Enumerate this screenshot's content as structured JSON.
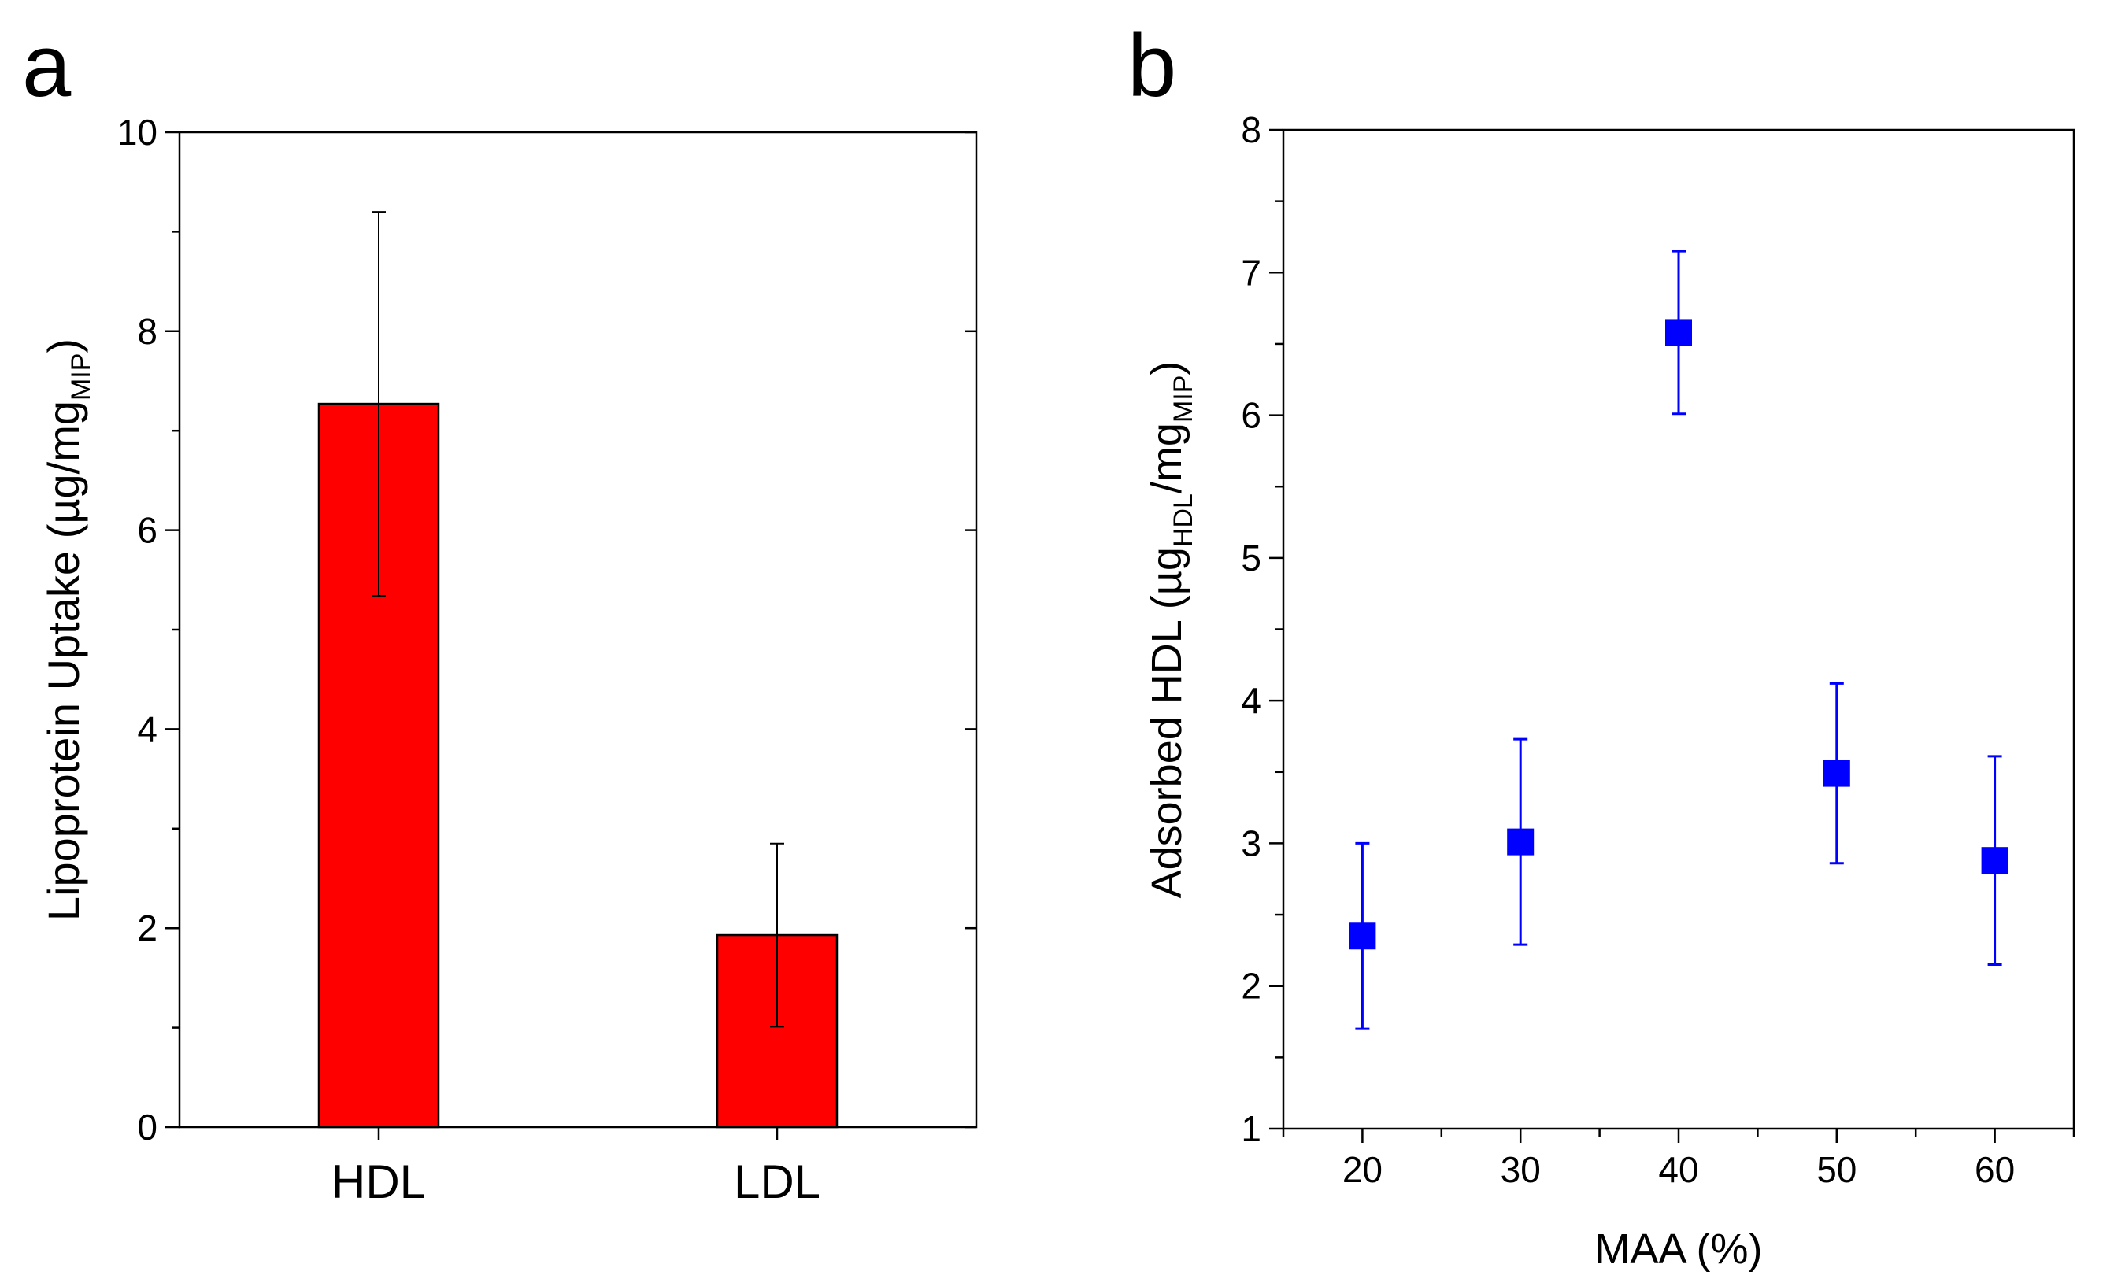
{
  "panels": [
    {
      "letter": "a"
    },
    {
      "letter": "b"
    }
  ],
  "chart_data": [
    {
      "type": "bar",
      "title": "",
      "categories": [
        "HDL",
        "LDL"
      ],
      "values": [
        7.27,
        1.93
      ],
      "errors": [
        1.93,
        0.92
      ],
      "colors": {
        "bar": "#ff0000",
        "stroke": "#000000"
      },
      "xlabel": "",
      "ylabel": {
        "main": "Lipoprotein Uptake (µg/mg",
        "subscript": "MIP",
        "close": ")"
      },
      "ylim": [
        0,
        10
      ],
      "yticks": [
        "0",
        "2",
        "4",
        "6",
        "8",
        "10"
      ],
      "grid": false
    },
    {
      "type": "scatter",
      "title": "",
      "x": [
        20,
        30,
        40,
        50,
        60
      ],
      "y": [
        2.35,
        3.01,
        6.58,
        3.49,
        2.88
      ],
      "errors": [
        0.65,
        0.72,
        0.57,
        0.63,
        0.73
      ],
      "colors": {
        "marker": "#0000ff"
      },
      "xlabel": "MAA (%)",
      "ylabel": {
        "main": "Adsorbed HDL (µg",
        "subscript1": "HDL",
        "mid": "/mg",
        "subscript2": "MIP",
        "close": ")"
      },
      "xlim": [
        15,
        65
      ],
      "ylim": [
        1,
        8
      ],
      "xticks": [
        "20",
        "30",
        "40",
        "50",
        "60"
      ],
      "yticks": [
        "1",
        "2",
        "3",
        "4",
        "5",
        "6",
        "7",
        "8"
      ],
      "grid": false
    }
  ]
}
